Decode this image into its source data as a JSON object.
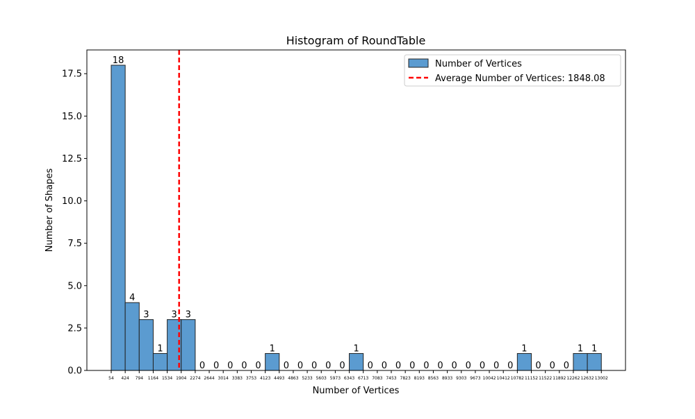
{
  "chart_data": {
    "type": "bar",
    "title": "Histogram of RoundTable",
    "xlabel": "Number of Vertices",
    "ylabel": "Number of Shapes",
    "ylim": [
      0,
      18.9
    ],
    "yticks": [
      "0.0",
      "2.5",
      "5.0",
      "7.5",
      "10.0",
      "12.5",
      "15.0",
      "17.5"
    ],
    "bin_edges": [
      54,
      424,
      794,
      1164,
      1534,
      1904,
      2274,
      2644,
      3014,
      3383,
      3753,
      4123,
      4493,
      4863,
      5233,
      5603,
      5973,
      6343,
      6713,
      7083,
      7453,
      7823,
      8193,
      8563,
      8933,
      9303,
      9673,
      10042,
      10412,
      10782,
      11152,
      11522,
      11892,
      12262,
      12632,
      13002
    ],
    "xtick_labels": [
      "54",
      "424",
      "794",
      "1164",
      "1534",
      "1904",
      "2274",
      "2644",
      "3014",
      "3383",
      "3753",
      "4123",
      "4493",
      "4863",
      "5233",
      "5603",
      "5973",
      "6343",
      "6713",
      "7083",
      "7453",
      "7823",
      "8193",
      "8563",
      "8933",
      "9303",
      "9673",
      "10042",
      "10412",
      "10782",
      "11152",
      "11522",
      "11892",
      "12262",
      "12632",
      "13002"
    ],
    "series": [
      {
        "name": "Number of Vertices",
        "values": [
          18,
          4,
          3,
          1,
          3,
          3,
          0,
          0,
          0,
          0,
          0,
          1,
          0,
          0,
          0,
          0,
          0,
          1,
          0,
          0,
          0,
          0,
          0,
          0,
          0,
          0,
          0,
          0,
          0,
          1,
          0,
          0,
          0,
          1,
          1
        ]
      }
    ],
    "bar_labels": [
      "18",
      "4",
      "3",
      "1",
      "3",
      "3",
      "0",
      "0",
      "0",
      "0",
      "0",
      "1",
      "0",
      "0",
      "0",
      "0",
      "0",
      "1",
      "0",
      "0",
      "0",
      "0",
      "0",
      "0",
      "0",
      "0",
      "0",
      "0",
      "0",
      "1",
      "0",
      "0",
      "0",
      "1",
      "1"
    ],
    "average_line": {
      "value": 1848.08,
      "label": "Average Number of Vertices: 1848.08"
    },
    "legend": {
      "placement": "top-right",
      "entries": [
        "Number of Vertices",
        "Average Number of Vertices: 1848.08"
      ]
    },
    "grid": false,
    "colors": {
      "bar_fill": "#5b9bd0",
      "bar_edge": "#222222",
      "average_line": "#ff0000"
    }
  }
}
